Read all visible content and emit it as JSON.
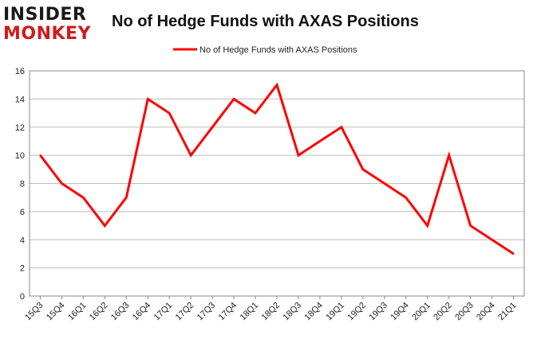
{
  "logo": {
    "line1": "INSIDER",
    "line2": "MONKEY"
  },
  "chart_data": {
    "type": "line",
    "title": "No of Hedge Funds with AXAS Positions",
    "xlabel": "",
    "ylabel": "",
    "categories": [
      "15Q3",
      "15Q4",
      "16Q1",
      "16Q2",
      "16Q3",
      "16Q4",
      "17Q1",
      "17Q2",
      "17Q3",
      "17Q4",
      "18Q1",
      "18Q2",
      "18Q3",
      "18Q4",
      "19Q1",
      "19Q2",
      "19Q3",
      "19Q4",
      "20Q1",
      "20Q2",
      "20Q3",
      "20Q4",
      "21Q1"
    ],
    "series": [
      {
        "name": "No of Hedge Funds with AXAS Positions",
        "color": "#ff0000",
        "values": [
          10,
          8,
          7,
          5,
          7,
          14,
          13,
          10,
          12,
          14,
          13,
          15,
          10,
          11,
          12,
          9,
          8,
          7,
          5,
          10,
          5,
          4,
          3
        ]
      }
    ],
    "ylim": [
      0,
      16
    ],
    "yticks": [
      "0",
      "2",
      "4",
      "6",
      "8",
      "10",
      "12",
      "14",
      "16"
    ],
    "grid": true,
    "legend": "top-center"
  }
}
